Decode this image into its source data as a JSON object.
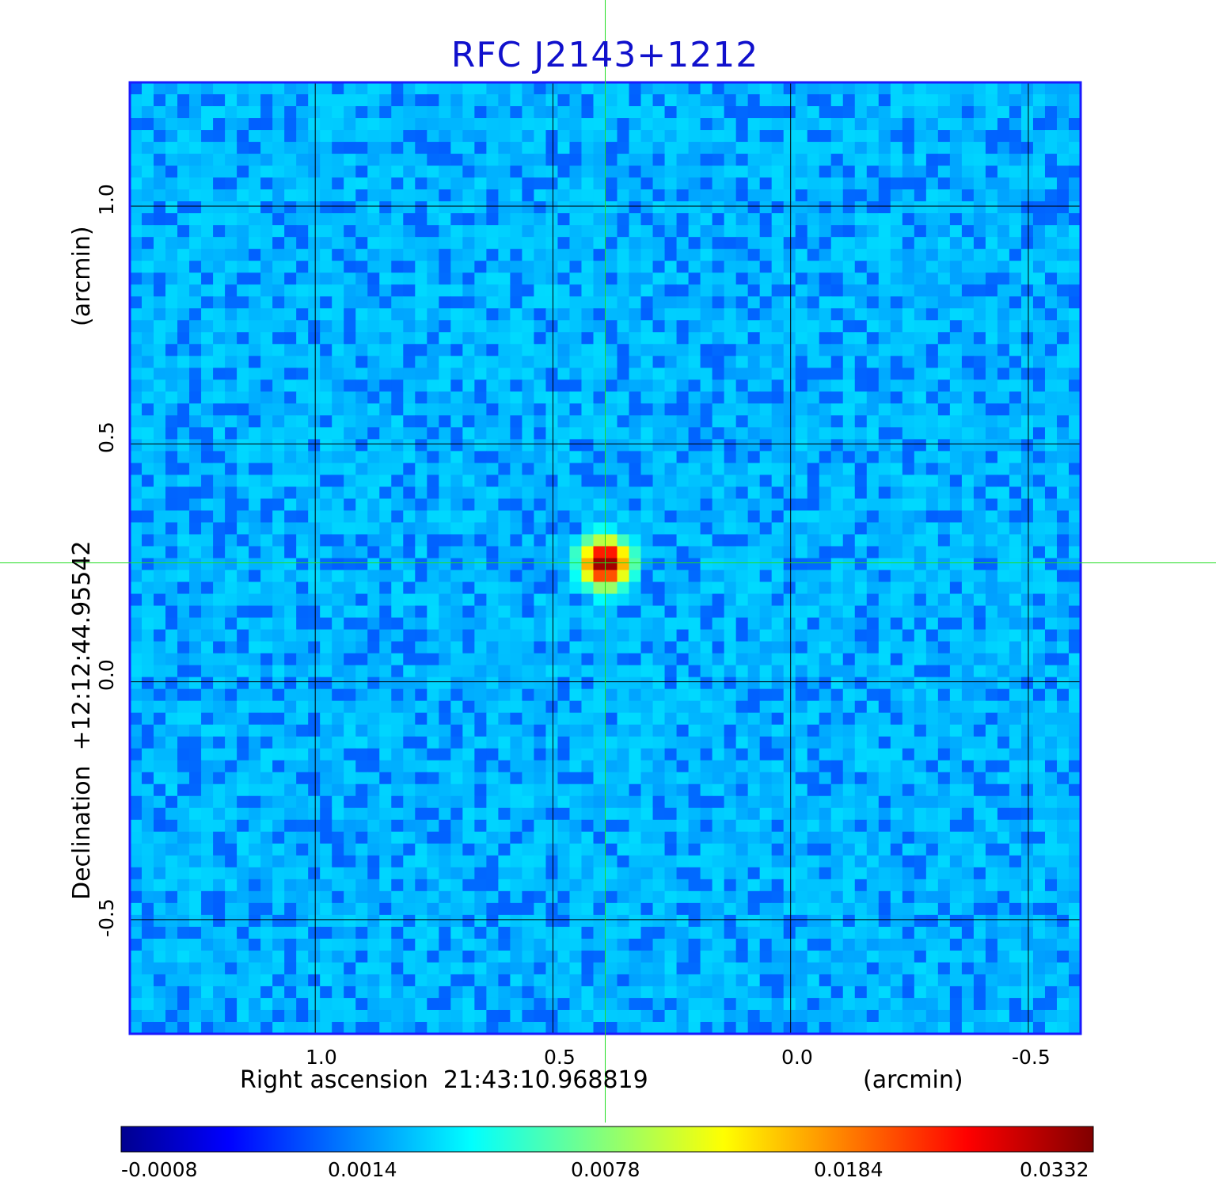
{
  "chart_data": {
    "type": "heatmap",
    "title": "RFC J2143+1212",
    "xlabel": "Right ascension  21:43:10.968819",
    "xunit": "(arcmin)",
    "ylabel": "Declination  +12:12:44.95542",
    "yunit": "(arcmin)",
    "x_ticks": [
      "1.0",
      "0.5",
      "0.0",
      "-0.5"
    ],
    "y_ticks": [
      "1.0",
      "0.5",
      "0.0",
      "-0.5"
    ],
    "xlim": [
      1.39,
      -0.61
    ],
    "ylim": [
      -0.74,
      1.26
    ],
    "grid": true,
    "crosshair": {
      "x": 0.39,
      "y": 0.25,
      "color": "#22dd22"
    },
    "source_peak": {
      "x": 0.39,
      "y": 0.25,
      "value": 0.0332
    },
    "background_level": 0.0002,
    "colormap": "jet",
    "colorbar": {
      "tick_labels": [
        "-0.0008",
        "0.0014",
        "0.0078",
        "0.0184",
        "0.0332"
      ],
      "min": -0.0008,
      "max": 0.0332
    }
  }
}
